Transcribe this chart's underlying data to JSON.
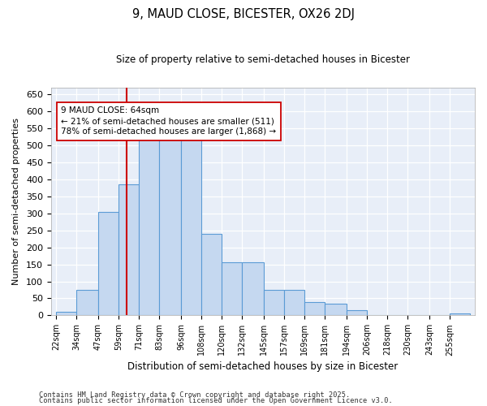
{
  "title": "9, MAUD CLOSE, BICESTER, OX26 2DJ",
  "subtitle": "Size of property relative to semi-detached houses in Bicester",
  "xlabel": "Distribution of semi-detached houses by size in Bicester",
  "ylabel": "Number of semi-detached properties",
  "property_size": 64,
  "property_label": "9 MAUD CLOSE: 64sqm",
  "pct_smaller": 21,
  "pct_larger": 78,
  "count_smaller": 511,
  "count_larger": 1868,
  "bar_color": "#c5d8f0",
  "bar_edge_color": "#5b9bd5",
  "vline_color": "#cc0000",
  "annotation_box_color": "#cc0000",
  "background_color": "#e8eef8",
  "grid_color": "#ffffff",
  "bins": [
    22,
    34,
    47,
    59,
    71,
    83,
    96,
    108,
    120,
    132,
    145,
    157,
    169,
    181,
    194,
    206,
    218,
    230,
    243,
    255,
    267
  ],
  "heights": [
    10,
    75,
    305,
    385,
    530,
    590,
    590,
    240,
    155,
    155,
    75,
    75,
    40,
    35,
    15,
    0,
    0,
    0,
    0,
    5
  ],
  "footnote1": "Contains HM Land Registry data © Crown copyright and database right 2025.",
  "footnote2": "Contains public sector information licensed under the Open Government Licence v3.0."
}
